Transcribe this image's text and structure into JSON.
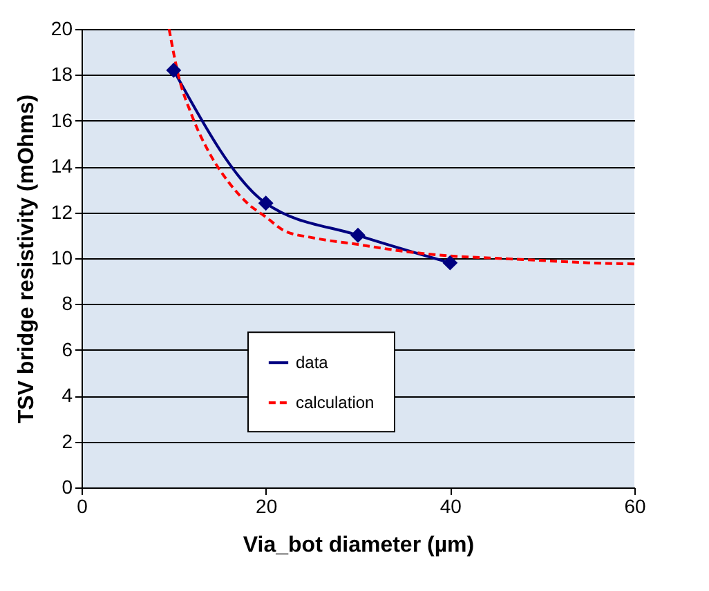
{
  "chart_data": {
    "type": "line",
    "xlabel": "Via_bot diameter (µm)",
    "ylabel": "TSV  bridge resistivity (mOhms)",
    "xlim": [
      0,
      60
    ],
    "xticks": [
      0,
      20,
      40,
      60
    ],
    "ylim": [
      0,
      20
    ],
    "yticks": [
      0,
      2,
      4,
      6,
      8,
      10,
      12,
      14,
      16,
      18,
      20
    ],
    "grid": "y",
    "legend": "bottom",
    "series": [
      {
        "name": "data",
        "color": "#000080",
        "marker": "diamond",
        "line_style": "solid",
        "x": [
          10,
          20,
          30,
          40
        ],
        "values": [
          18.2,
          12.4,
          11.0,
          9.8
        ]
      },
      {
        "name": "calculation",
        "color": "#ff0000",
        "marker": "none",
        "line_style": "dashed",
        "x": [
          9.5,
          10.5,
          12,
          14,
          16,
          18,
          20,
          22,
          25,
          30,
          35,
          40,
          45,
          50,
          55,
          60
        ],
        "values": [
          20,
          18,
          16.2,
          14.5,
          13.3,
          12.4,
          11.8,
          11.2,
          10.9,
          10.6,
          10.3,
          10.1,
          10.0,
          9.9,
          9.8,
          9.75
        ]
      }
    ]
  }
}
